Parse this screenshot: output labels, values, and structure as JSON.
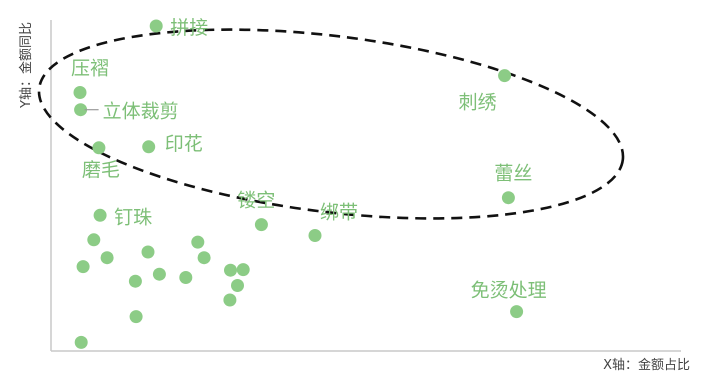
{
  "chart_data": {
    "type": "scatter",
    "title": "",
    "xlabel": "X轴：金额占比",
    "ylabel": "Y轴：金额同比",
    "xlim": [
      0,
      100
    ],
    "ylim": [
      0,
      100
    ],
    "grid": false,
    "accent_color": "#8ccc86",
    "highlight": "dashed-ellipse",
    "points": [
      {
        "x": 16.7,
        "y": 98.2,
        "label": "拼接"
      },
      {
        "x": 4.6,
        "y": 78.1,
        "label": "压褶"
      },
      {
        "x": 4.7,
        "y": 72.9,
        "label": "立体裁剪"
      },
      {
        "x": 72.0,
        "y": 83.2,
        "label": "刺绣"
      },
      {
        "x": 15.5,
        "y": 61.7,
        "label": "印花"
      },
      {
        "x": 7.6,
        "y": 61.4,
        "label": "磨毛"
      },
      {
        "x": 72.6,
        "y": 46.3,
        "label": "蕾丝"
      },
      {
        "x": 7.8,
        "y": 41.0,
        "label": "钉珠"
      },
      {
        "x": 33.4,
        "y": 38.2,
        "label": "镂空"
      },
      {
        "x": 41.9,
        "y": 34.9,
        "label": "绑带"
      },
      {
        "x": 73.9,
        "y": 11.9,
        "label": "免烫处理"
      },
      {
        "x": 6.8,
        "y": 33.6,
        "label": ""
      },
      {
        "x": 5.1,
        "y": 25.5,
        "label": ""
      },
      {
        "x": 8.9,
        "y": 28.2,
        "label": ""
      },
      {
        "x": 15.4,
        "y": 29.9,
        "label": ""
      },
      {
        "x": 13.4,
        "y": 21.1,
        "label": ""
      },
      {
        "x": 17.2,
        "y": 23.2,
        "label": ""
      },
      {
        "x": 21.4,
        "y": 22.2,
        "label": ""
      },
      {
        "x": 23.3,
        "y": 32.9,
        "label": ""
      },
      {
        "x": 24.3,
        "y": 28.2,
        "label": ""
      },
      {
        "x": 28.5,
        "y": 24.4,
        "label": ""
      },
      {
        "x": 30.5,
        "y": 24.6,
        "label": ""
      },
      {
        "x": 29.6,
        "y": 19.8,
        "label": ""
      },
      {
        "x": 28.4,
        "y": 15.4,
        "label": ""
      },
      {
        "x": 13.5,
        "y": 10.4,
        "label": ""
      },
      {
        "x": 4.8,
        "y": 2.6,
        "label": ""
      }
    ]
  }
}
